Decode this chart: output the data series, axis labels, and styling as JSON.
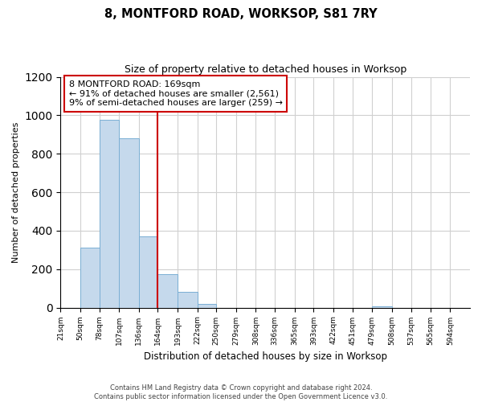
{
  "title": "8, MONTFORD ROAD, WORKSOP, S81 7RY",
  "subtitle": "Size of property relative to detached houses in Worksop",
  "xlabel": "Distribution of detached houses by size in Worksop",
  "ylabel": "Number of detached properties",
  "bar_edges": [
    21,
    50,
    78,
    107,
    136,
    164,
    193,
    222,
    250,
    279,
    308,
    336,
    365,
    393,
    422,
    451,
    479,
    508,
    537,
    565,
    594
  ],
  "bar_heights": [
    0,
    310,
    975,
    880,
    370,
    175,
    80,
    20,
    0,
    0,
    0,
    0,
    0,
    0,
    0,
    0,
    5,
    0,
    0,
    0,
    0
  ],
  "bar_color": "#c5d9ec",
  "bar_edgecolor": "#7aafd4",
  "vline_x": 164,
  "vline_color": "#cc0000",
  "annotation_text_line1": "8 MONTFORD ROAD: 169sqm",
  "annotation_text_line2": "← 91% of detached houses are smaller (2,561)",
  "annotation_text_line3": "9% of semi-detached houses are larger (259) →",
  "annotation_box_color": "white",
  "annotation_box_edgecolor": "#cc0000",
  "ylim": [
    0,
    1200
  ],
  "yticks": [
    0,
    200,
    400,
    600,
    800,
    1000,
    1200
  ],
  "tick_labels": [
    "21sqm",
    "50sqm",
    "78sqm",
    "107sqm",
    "136sqm",
    "164sqm",
    "193sqm",
    "222sqm",
    "250sqm",
    "279sqm",
    "308sqm",
    "336sqm",
    "365sqm",
    "393sqm",
    "422sqm",
    "451sqm",
    "479sqm",
    "508sqm",
    "537sqm",
    "565sqm",
    "594sqm"
  ],
  "footer_text": "Contains HM Land Registry data © Crown copyright and database right 2024.\nContains public sector information licensed under the Open Government Licence v3.0.",
  "background_color": "#ffffff",
  "grid_color": "#d0d0d0",
  "title_fontsize": 10.5,
  "subtitle_fontsize": 9,
  "ylabel_fontsize": 8,
  "xlabel_fontsize": 8.5,
  "annotation_fontsize": 8,
  "tick_fontsize": 6.5
}
